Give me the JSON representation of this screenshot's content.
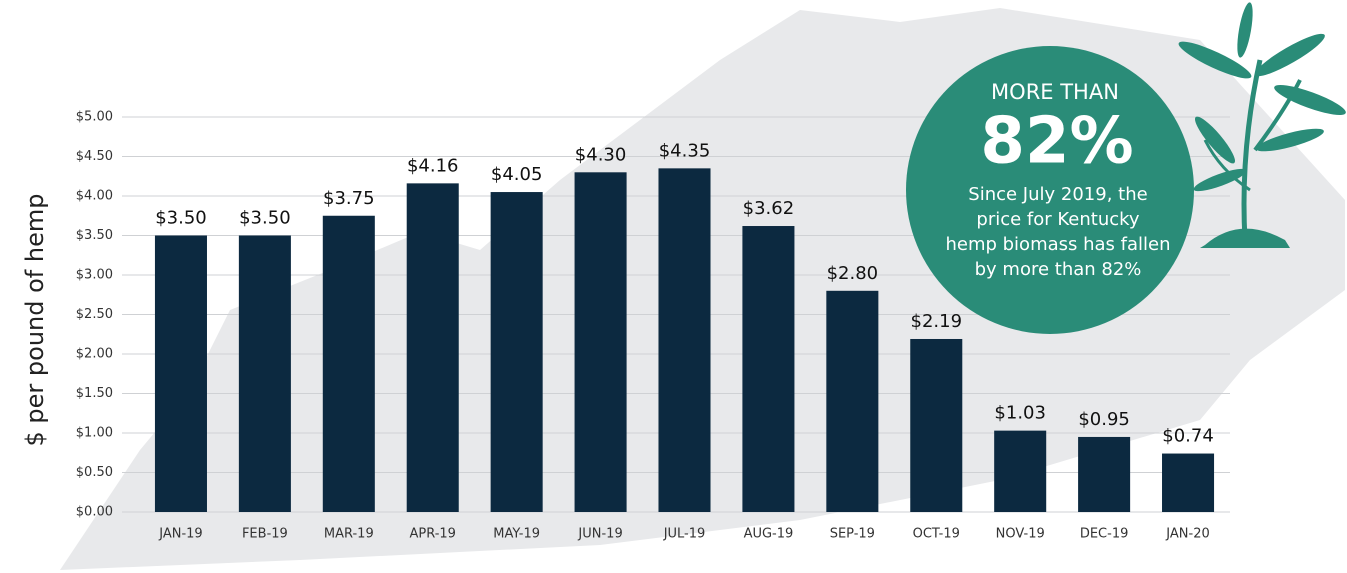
{
  "chart_data": {
    "type": "bar",
    "y_label": "$ per pound of hemp",
    "categories": [
      "JAN-19",
      "FEB-19",
      "MAR-19",
      "APR-19",
      "MAY-19",
      "JUN-19",
      "JUL-19",
      "AUG-19",
      "SEP-19",
      "OCT-19",
      "NOV-19",
      "DEC-19",
      "JAN-20"
    ],
    "values": [
      3.5,
      3.5,
      3.75,
      4.16,
      4.05,
      4.3,
      4.35,
      3.62,
      2.8,
      2.19,
      1.03,
      0.95,
      0.74
    ],
    "value_labels": [
      "$3.50",
      "$3.50",
      "$3.75",
      "$4.16",
      "$4.05",
      "$4.30",
      "$4.35",
      "$3.62",
      "$2.80",
      "$2.19",
      "$1.03",
      "$0.95",
      "$0.74"
    ],
    "color": "#0c2940",
    "ylim": [
      0,
      5
    ],
    "yticks": [
      {
        "value": 0,
        "label": "$0.00"
      },
      {
        "value": 0.5,
        "label": "$0.50"
      },
      {
        "value": 1,
        "label": "$1.00"
      },
      {
        "value": 1.5,
        "label": "$1.50"
      },
      {
        "value": 2,
        "label": "$2.00"
      },
      {
        "value": 2.5,
        "label": "$2.50"
      },
      {
        "value": 3,
        "label": "$3.00"
      },
      {
        "value": 3.5,
        "label": "$3.50"
      },
      {
        "value": 4,
        "label": "$4.00"
      },
      {
        "value": 4.5,
        "label": "$4.50"
      },
      {
        "value": 5,
        "label": "$5.00"
      }
    ],
    "grid": true,
    "annotation": {
      "heading": "MORE THAN",
      "highlight": "82%",
      "body": [
        "Since July 2019, the",
        "price for Kentucky",
        "hemp biomass has fallen",
        "by more than 82%"
      ]
    }
  }
}
